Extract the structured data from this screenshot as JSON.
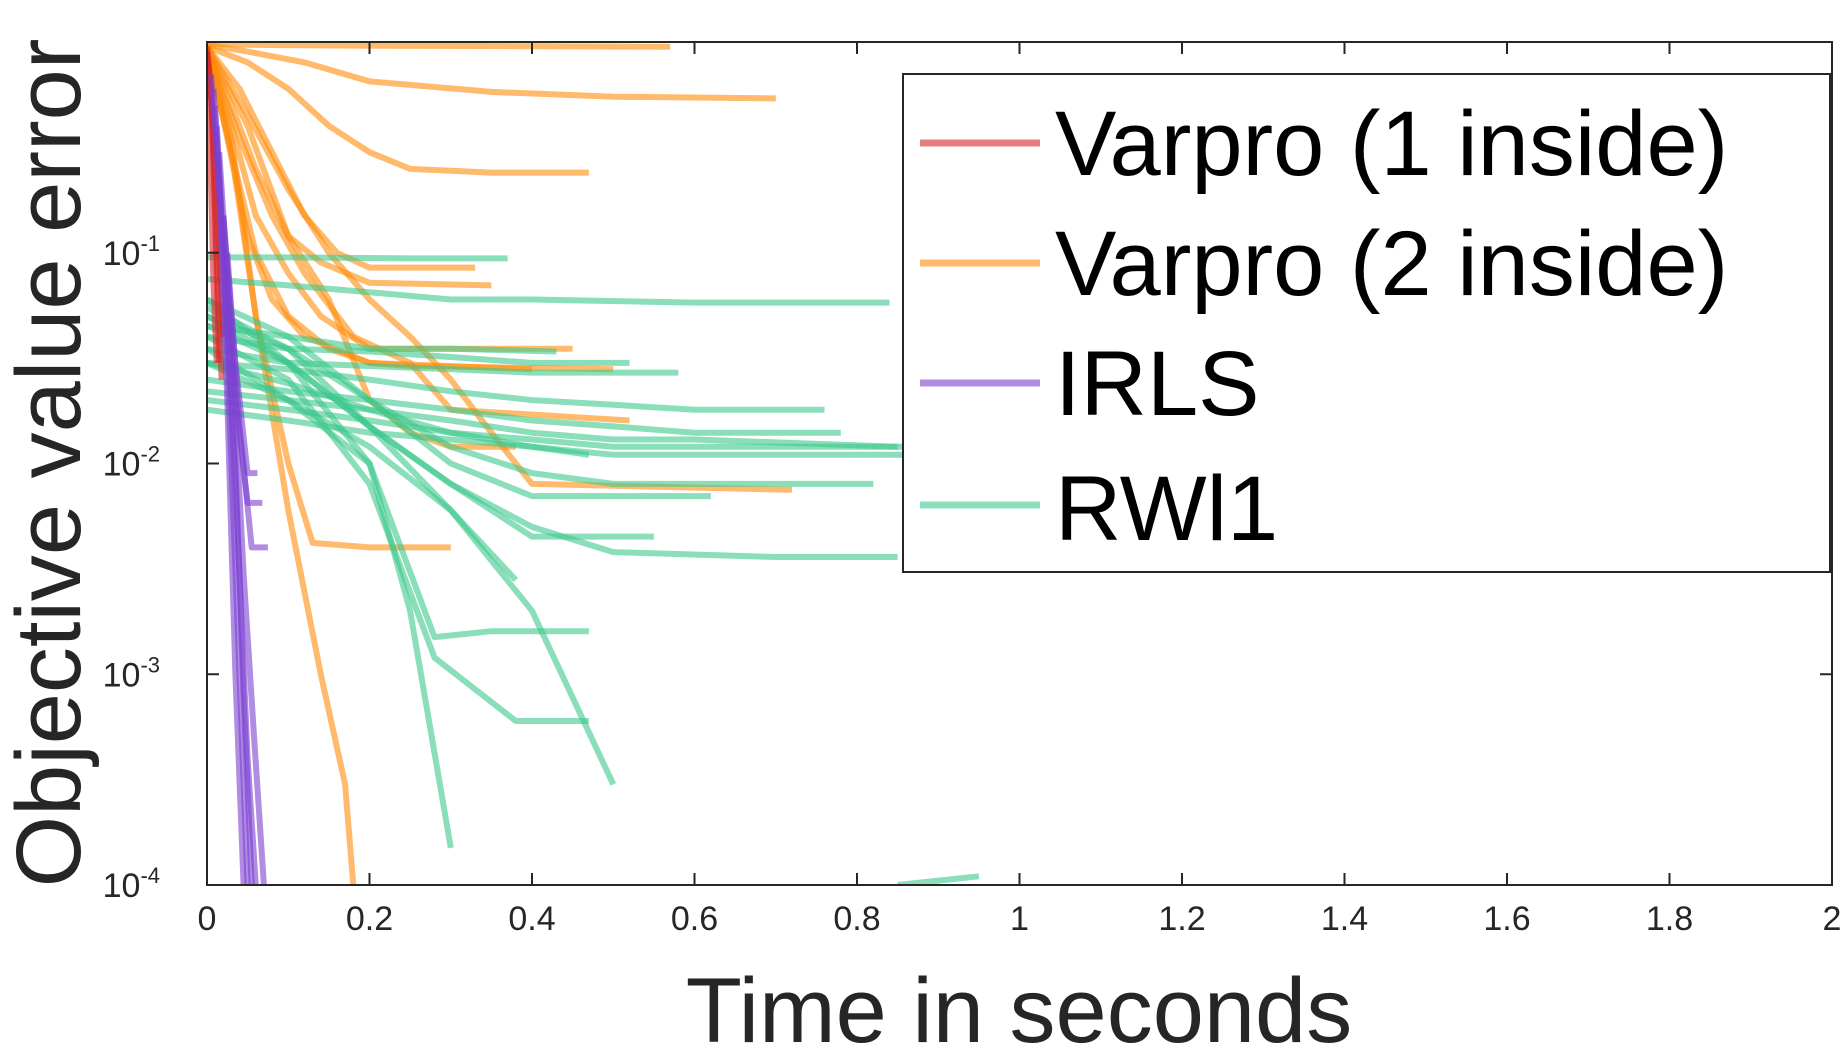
{
  "chart_data": {
    "type": "line",
    "title": "",
    "xlabel": "Time in seconds",
    "ylabel": "Objective value error",
    "xlim": [
      0,
      2
    ],
    "ylim": [
      0.0001,
      1
    ],
    "yscale": "log",
    "grid": false,
    "box": true,
    "legend_position": "top-right",
    "xticks": [
      0,
      0.2,
      0.4,
      0.6,
      0.8,
      1,
      1.2,
      1.4,
      1.6,
      1.8,
      2
    ],
    "xtick_labels": [
      "0",
      "0.2",
      "0.4",
      "0.6",
      "0.8",
      "1",
      "1.2",
      "1.4",
      "1.6",
      "1.8",
      "2"
    ],
    "yticks": [
      {
        "value": 0.1,
        "base": "10",
        "exp": "-1"
      },
      {
        "value": 0.01,
        "base": "10",
        "exp": "-2"
      },
      {
        "value": 0.001,
        "base": "10",
        "exp": "-3"
      },
      {
        "value": 0.0001,
        "base": "10",
        "exp": "-4"
      }
    ],
    "series": [
      {
        "name": "Varpro (1 inside)",
        "color": "#D62728",
        "runs": [
          {
            "x": [
              0,
              0.005,
              0.01,
              0.015
            ],
            "y": [
              0.95,
              0.6,
              0.15,
              0.03
            ]
          },
          {
            "x": [
              0,
              0.006,
              0.012,
              0.018
            ],
            "y": [
              0.9,
              0.5,
              0.1,
              0.025
            ]
          },
          {
            "x": [
              0,
              0.004,
              0.008,
              0.012
            ],
            "y": [
              0.8,
              0.3,
              0.07,
              0.03
            ]
          },
          {
            "x": [
              0,
              0.007,
              0.014,
              0.02
            ],
            "y": [
              0.9,
              0.45,
              0.12,
              0.04
            ]
          }
        ]
      },
      {
        "name": "Varpro (2 inside)",
        "color": "#FF8C0A",
        "runs": [
          {
            "x": [
              0,
              0.05,
              0.2,
              0.57
            ],
            "y": [
              0.98,
              0.97,
              0.96,
              0.95
            ]
          },
          {
            "x": [
              0,
              0.05,
              0.12,
              0.2,
              0.35,
              0.5,
              0.7
            ],
            "y": [
              0.97,
              0.9,
              0.8,
              0.65,
              0.58,
              0.55,
              0.54
            ]
          },
          {
            "x": [
              0,
              0.05,
              0.1,
              0.15,
              0.2,
              0.25,
              0.35,
              0.47
            ],
            "y": [
              0.95,
              0.8,
              0.6,
              0.4,
              0.3,
              0.25,
              0.24,
              0.24
            ]
          },
          {
            "x": [
              0,
              0.04,
              0.08,
              0.12,
              0.16,
              0.2,
              0.33
            ],
            "y": [
              0.95,
              0.6,
              0.3,
              0.15,
              0.1,
              0.085,
              0.085
            ]
          },
          {
            "x": [
              0,
              0.03,
              0.06,
              0.1,
              0.14,
              0.2,
              0.35
            ],
            "y": [
              0.95,
              0.5,
              0.25,
              0.12,
              0.09,
              0.072,
              0.07
            ]
          },
          {
            "x": [
              0,
              0.03,
              0.06,
              0.1,
              0.14,
              0.2,
              0.45
            ],
            "y": [
              0.95,
              0.4,
              0.15,
              0.08,
              0.05,
              0.035,
              0.035
            ]
          },
          {
            "x": [
              0,
              0.025,
              0.05,
              0.08,
              0.12,
              0.2,
              0.4
            ],
            "y": [
              0.95,
              0.35,
              0.12,
              0.06,
              0.04,
              0.03,
              0.028
            ]
          },
          {
            "x": [
              0,
              0.03,
              0.06,
              0.1,
              0.15,
              0.2,
              0.25,
              0.5
            ],
            "y": [
              0.95,
              0.3,
              0.1,
              0.05,
              0.035,
              0.03,
              0.029,
              0.028
            ]
          },
          {
            "x": [
              0,
              0.04,
              0.08,
              0.12,
              0.18,
              0.25,
              0.3,
              0.52
            ],
            "y": [
              0.95,
              0.35,
              0.15,
              0.08,
              0.04,
              0.03,
              0.018,
              0.016
            ]
          },
          {
            "x": [
              0,
              0.05,
              0.1,
              0.15,
              0.2,
              0.25,
              0.3,
              0.38
            ],
            "y": [
              0.95,
              0.4,
              0.12,
              0.06,
              0.02,
              0.014,
              0.012,
              0.012
            ]
          },
          {
            "x": [
              0,
              0.05,
              0.1,
              0.15,
              0.2,
              0.25,
              0.3,
              0.35,
              0.4,
              0.72
            ],
            "y": [
              0.95,
              0.45,
              0.2,
              0.1,
              0.06,
              0.04,
              0.025,
              0.014,
              0.008,
              0.0075
            ]
          },
          {
            "x": [
              0,
              0.03,
              0.06,
              0.1,
              0.13,
              0.2,
              0.3
            ],
            "y": [
              0.95,
              0.35,
              0.05,
              0.01,
              0.0042,
              0.004,
              0.004
            ]
          },
          {
            "x": [
              0,
              0.03,
              0.06,
              0.1,
              0.14,
              0.17,
              0.18
            ],
            "y": [
              0.95,
              0.3,
              0.05,
              0.006,
              0.001,
              0.0003,
              0.0001
            ]
          }
        ]
      },
      {
        "name": "IRLS",
        "color": "#7B3FD1",
        "runs": [
          {
            "x": [
              0.005,
              0.015,
              0.025,
              0.035,
              0.045
            ],
            "y": [
              0.7,
              0.2,
              0.02,
              0.001,
              0.0001
            ]
          },
          {
            "x": [
              0.008,
              0.02,
              0.03,
              0.04,
              0.05
            ],
            "y": [
              0.6,
              0.1,
              0.01,
              0.001,
              0.0001
            ]
          },
          {
            "x": [
              0.01,
              0.02,
              0.035,
              0.045,
              0.055
            ],
            "y": [
              0.5,
              0.1,
              0.01,
              0.0008,
              0.0001
            ]
          },
          {
            "x": [
              0.012,
              0.025,
              0.04,
              0.05,
              0.06
            ],
            "y": [
              0.4,
              0.05,
              0.003,
              0.0004,
              0.0001
            ]
          },
          {
            "x": [
              0.015,
              0.03,
              0.045,
              0.058,
              0.07
            ],
            "y": [
              0.3,
              0.04,
              0.003,
              0.0005,
              0.0001
            ]
          },
          {
            "x": [
              0.02,
              0.035,
              0.05,
              0.062
            ],
            "y": [
              0.15,
              0.03,
              0.009,
              0.009
            ]
          },
          {
            "x": [
              0.02,
              0.035,
              0.05,
              0.068
            ],
            "y": [
              0.15,
              0.02,
              0.0065,
              0.0065
            ]
          },
          {
            "x": [
              0.025,
              0.04,
              0.055,
              0.075
            ],
            "y": [
              0.1,
              0.015,
              0.004,
              0.004
            ]
          }
        ]
      },
      {
        "name": "RWl1",
        "color": "#3CC88C",
        "runs": [
          {
            "x": [
              0,
              0.1,
              0.25,
              0.37
            ],
            "y": [
              0.095,
              0.095,
              0.094,
              0.094
            ]
          },
          {
            "x": [
              0,
              0.1,
              0.2,
              0.3,
              0.4,
              0.6,
              0.84
            ],
            "y": [
              0.075,
              0.07,
              0.065,
              0.06,
              0.06,
              0.058,
              0.058
            ]
          },
          {
            "x": [
              0,
              0.1,
              0.2,
              0.3,
              0.43
            ],
            "y": [
              0.045,
              0.04,
              0.035,
              0.035,
              0.034
            ]
          },
          {
            "x": [
              0,
              0.1,
              0.2,
              0.3,
              0.4,
              0.52
            ],
            "y": [
              0.04,
              0.035,
              0.034,
              0.032,
              0.03,
              0.03
            ]
          },
          {
            "x": [
              0,
              0.1,
              0.2,
              0.3,
              0.4,
              0.58
            ],
            "y": [
              0.035,
              0.03,
              0.029,
              0.028,
              0.027,
              0.027
            ]
          },
          {
            "x": [
              0,
              0.1,
              0.2,
              0.3,
              0.4,
              0.5,
              0.6,
              0.76
            ],
            "y": [
              0.03,
              0.028,
              0.025,
              0.022,
              0.02,
              0.019,
              0.018,
              0.018
            ]
          },
          {
            "x": [
              0,
              0.1,
              0.2,
              0.3,
              0.4,
              0.5,
              0.6,
              0.78
            ],
            "y": [
              0.025,
              0.022,
              0.02,
              0.018,
              0.016,
              0.015,
              0.014,
              0.014
            ]
          },
          {
            "x": [
              0,
              0.1,
              0.2,
              0.3,
              0.4,
              0.5,
              0.6,
              0.85
            ],
            "y": [
              0.022,
              0.02,
              0.018,
              0.016,
              0.014,
              0.013,
              0.013,
              0.012
            ]
          },
          {
            "x": [
              0,
              0.1,
              0.2,
              0.3,
              0.4,
              0.5,
              0.6,
              0.88
            ],
            "y": [
              0.02,
              0.018,
              0.016,
              0.014,
              0.013,
              0.012,
              0.012,
              0.012
            ]
          },
          {
            "x": [
              0,
              0.1,
              0.2,
              0.3,
              0.4,
              0.5,
              0.6,
              0.88
            ],
            "y": [
              0.018,
              0.016,
              0.014,
              0.013,
              0.012,
              0.011,
              0.011,
              0.011
            ]
          },
          {
            "x": [
              0,
              0.1,
              0.2,
              0.3,
              0.4,
              0.47
            ],
            "y": [
              0.03,
              0.024,
              0.018,
              0.014,
              0.012,
              0.011
            ]
          },
          {
            "x": [
              0,
              0.1,
              0.2,
              0.3,
              0.4,
              0.5,
              0.6,
              0.82
            ],
            "y": [
              0.05,
              0.035,
              0.02,
              0.012,
              0.009,
              0.008,
              0.008,
              0.008
            ]
          },
          {
            "x": [
              0,
              0.1,
              0.2,
              0.3,
              0.4,
              0.5,
              0.62
            ],
            "y": [
              0.06,
              0.04,
              0.02,
              0.01,
              0.007,
              0.007,
              0.007
            ]
          },
          {
            "x": [
              0,
              0.1,
              0.2,
              0.3,
              0.4,
              0.55
            ],
            "y": [
              0.055,
              0.035,
              0.015,
              0.008,
              0.0045,
              0.0045
            ]
          },
          {
            "x": [
              0,
              0.1,
              0.2,
              0.3,
              0.4,
              0.5,
              0.7,
              0.85
            ],
            "y": [
              0.05,
              0.03,
              0.015,
              0.008,
              0.005,
              0.0038,
              0.0036,
              0.0036
            ]
          },
          {
            "x": [
              0,
              0.1,
              0.2,
              0.3,
              0.38
            ],
            "y": [
              0.045,
              0.03,
              0.015,
              0.006,
              0.0028
            ]
          },
          {
            "x": [
              0,
              0.1,
              0.2,
              0.28,
              0.35,
              0.47
            ],
            "y": [
              0.06,
              0.03,
              0.01,
              0.0015,
              0.0016,
              0.0016
            ]
          },
          {
            "x": [
              0,
              0.1,
              0.2,
              0.28,
              0.38,
              0.47
            ],
            "y": [
              0.04,
              0.025,
              0.008,
              0.0012,
              0.0006,
              0.0006
            ]
          },
          {
            "x": [
              0,
              0.1,
              0.2,
              0.3,
              0.4,
              0.5
            ],
            "y": [
              0.035,
              0.02,
              0.012,
              0.006,
              0.002,
              0.0003
            ]
          },
          {
            "x": [
              0,
              0.1,
              0.2,
              0.25,
              0.3
            ],
            "y": [
              0.03,
              0.02,
              0.01,
              0.002,
              0.00015
            ]
          },
          {
            "x": [
              0.85,
              0.95
            ],
            "y": [
              0.0001,
              0.00011
            ]
          }
        ]
      }
    ]
  }
}
